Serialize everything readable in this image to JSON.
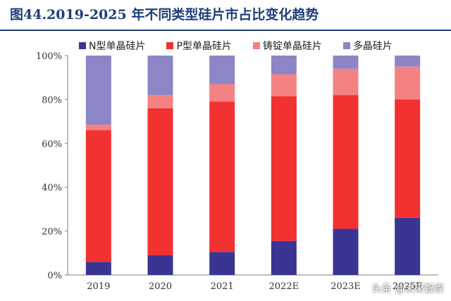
{
  "title": "图44.2019-2025 年不同类型硅片市占比变化趋势",
  "watermark": "头条 @未来智库",
  "chart_data": {
    "type": "bar",
    "stacked": true,
    "categories": [
      "2019",
      "2020",
      "2021",
      "2022E",
      "2023E",
      "2025E"
    ],
    "series": [
      {
        "name": "N型单晶硅片",
        "color": "#3a3592",
        "values": [
          6,
          9,
          10.5,
          15.5,
          21,
          26
        ]
      },
      {
        "name": "P型单晶硅片",
        "color": "#f23131",
        "values": [
          60,
          67,
          68.5,
          66,
          61,
          54
        ]
      },
      {
        "name": "铸锭单晶硅片",
        "color": "#f58282",
        "values": [
          2.5,
          6,
          8,
          10,
          12,
          15
        ]
      },
      {
        "name": "多晶硅片",
        "color": "#8c86c6",
        "values": [
          31.5,
          18,
          13,
          8.5,
          6,
          5
        ]
      }
    ],
    "yticks": [
      "0%",
      "20%",
      "40%",
      "60%",
      "80%",
      "100%"
    ],
    "ylim": [
      0,
      100
    ],
    "legend_position": "top"
  }
}
